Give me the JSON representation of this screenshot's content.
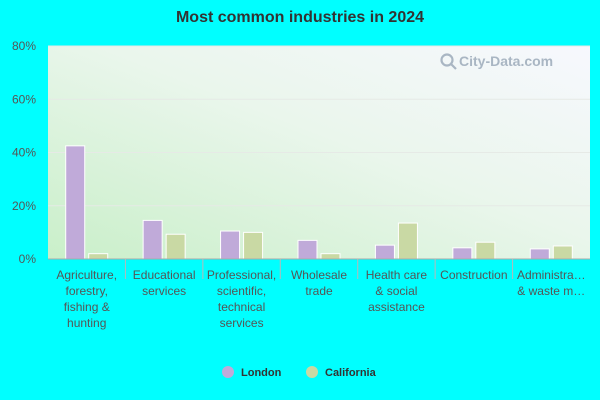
{
  "chart_data": {
    "type": "bar",
    "title": "Most common industries in 2024",
    "xlabel": "",
    "ylabel": "",
    "ylim": [
      0,
      80
    ],
    "y_ticks": [
      "0%",
      "20%",
      "40%",
      "60%",
      "80%"
    ],
    "y_tick_values": [
      0,
      20,
      40,
      60,
      80
    ],
    "categories": [
      "Agriculture, forestry, fishing & hunting",
      "Educational services",
      "Professional, scientific, technical services",
      "Wholesale trade",
      "Health care & social assistance",
      "Construction",
      "Administrative & waste management"
    ],
    "category_display_lines": [
      [
        "Agriculture,",
        "forestry,",
        "fishing &",
        "hunting"
      ],
      [
        "Educational",
        "services"
      ],
      [
        "Professional,",
        "scientific,",
        "technical",
        "services"
      ],
      [
        "Wholesale",
        "trade"
      ],
      [
        "Health care",
        "& social",
        "assistance"
      ],
      [
        "Construction"
      ],
      [
        "Administra…",
        "& waste m…"
      ]
    ],
    "series": [
      {
        "name": "London",
        "color": "#c0aad9",
        "values": [
          42.5,
          14.5,
          10.5,
          7.0,
          5.2,
          4.2,
          3.8
        ]
      },
      {
        "name": "California",
        "color": "#c9d9a4",
        "values": [
          2.0,
          9.3,
          10.0,
          2.0,
          13.5,
          6.3,
          4.9
        ]
      }
    ],
    "grid": true,
    "legend_position": "bottom-center"
  },
  "watermark": {
    "text": "City-Data.com"
  }
}
